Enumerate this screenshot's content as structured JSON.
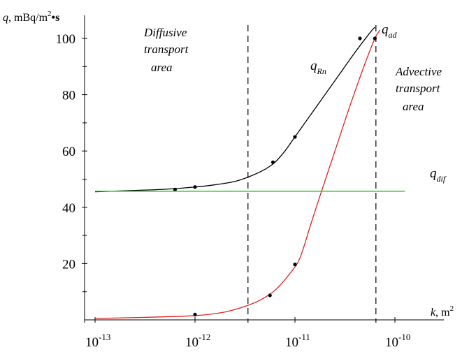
{
  "chart_data": {
    "type": "line",
    "x_scale": "log",
    "xlim_exp": [
      -13,
      -9.9
    ],
    "ylim": [
      0,
      105
    ],
    "y_ticks": [
      20,
      40,
      60,
      80,
      100
    ],
    "x_tick_labels": [
      {
        "base": "10",
        "exp": "-13",
        "value": -13
      },
      {
        "base": "10",
        "exp": "-12",
        "value": -12
      },
      {
        "base": "10",
        "exp": "-11",
        "value": -11
      },
      {
        "base": "10",
        "exp": "-10",
        "value": -10
      }
    ],
    "ylabel": {
      "var": "q",
      "unit": ", mBq/m",
      "sup": "2",
      "tail": "•s"
    },
    "xlabel": {
      "var": "k",
      "unit": ", m",
      "sup": "2"
    },
    "series": [
      {
        "name_base": "q",
        "name_sub": "Rn",
        "color": "#000000",
        "curve": [
          [
            -13.0,
            45.5
          ],
          [
            -12.6,
            46.0
          ],
          [
            -12.3,
            46.4
          ],
          [
            -12.0,
            47.2
          ],
          [
            -11.8,
            48.0
          ],
          [
            -11.6,
            49.2
          ],
          [
            -11.45,
            51.0
          ],
          [
            -11.3,
            53.5
          ],
          [
            -11.2,
            56.0
          ],
          [
            -11.1,
            60.0
          ],
          [
            -11.0,
            65.0
          ],
          [
            -10.8,
            75.0
          ],
          [
            -10.6,
            85.0
          ],
          [
            -10.4,
            95.0
          ],
          [
            -10.25,
            102.0
          ],
          [
            -10.2,
            104.0
          ]
        ],
        "points": [
          [
            -12.2,
            46.3
          ],
          [
            -12.0,
            47.2
          ],
          [
            -11.22,
            56.0
          ],
          [
            -11.0,
            65.0
          ],
          [
            -10.35,
            100.0
          ]
        ]
      },
      {
        "name_base": "q",
        "name_sub": "ad",
        "color": "#dd2222",
        "curve": [
          [
            -13.0,
            0.5
          ],
          [
            -12.5,
            0.9
          ],
          [
            -12.0,
            1.5
          ],
          [
            -11.7,
            2.8
          ],
          [
            -11.5,
            4.8
          ],
          [
            -11.35,
            7.0
          ],
          [
            -11.2,
            10.5
          ],
          [
            -11.05,
            16.5
          ],
          [
            -10.95,
            22.0
          ],
          [
            -10.85,
            33.0
          ],
          [
            -10.75,
            44.0
          ],
          [
            -10.6,
            60.0
          ],
          [
            -10.45,
            76.0
          ],
          [
            -10.3,
            91.0
          ],
          [
            -10.2,
            100.0
          ],
          [
            -10.15,
            103.0
          ]
        ],
        "points": [
          [
            -12.0,
            1.9
          ],
          [
            -11.25,
            8.7
          ],
          [
            -11.0,
            19.7
          ],
          [
            -10.2,
            100.0
          ]
        ]
      },
      {
        "name_base": "q",
        "name_sub": "dif",
        "color": "#22bb22",
        "curve": [
          [
            -13.0,
            45.7
          ],
          [
            -9.9,
            45.7
          ]
        ],
        "points": []
      }
    ],
    "vlines": [
      -11.47,
      -10.19
    ],
    "annotations": [
      {
        "lines": [
          "Diffusive",
          "transport",
          "area"
        ]
      },
      {
        "lines": [
          "Advective",
          "transport",
          "area"
        ]
      }
    ]
  }
}
